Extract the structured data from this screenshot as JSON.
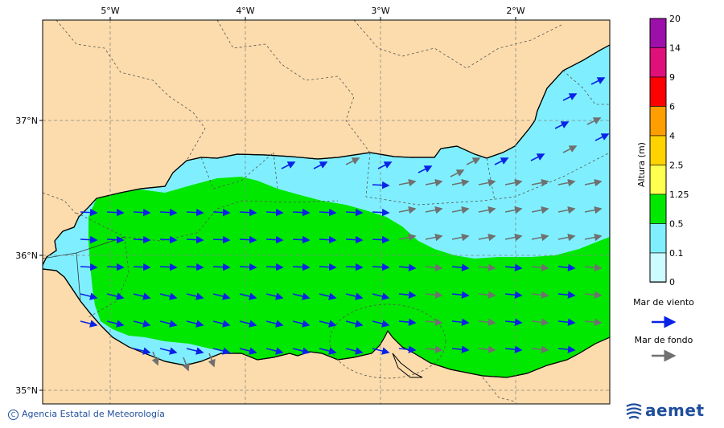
{
  "map": {
    "lon_labels": [
      "5°W",
      "4°W",
      "3°W",
      "2°W"
    ],
    "lat_labels": [
      "37°N",
      "36°N",
      "35°N"
    ]
  },
  "legend": {
    "title": "Altura (m)",
    "levels": [
      "20",
      "14",
      "9",
      "6",
      "4",
      "2.5",
      "1.25",
      "0.5",
      "0.1",
      "0"
    ],
    "colors": [
      "#9c0fa8",
      "#e0107b",
      "#ff0000",
      "#ff9e00",
      "#ffd300",
      "#ffff50",
      "#00e800",
      "#7fefff",
      "#ccfcff"
    ],
    "wind_label": "Mar de viento",
    "swell_label": "Mar de fondo",
    "wind_color": "#0a22e6",
    "swell_color": "#707070"
  },
  "colors": {
    "land": "#fcdcac",
    "sea_low": "#7fefff",
    "sea_mid": "#00e800"
  },
  "footer": {
    "credit": "Agencia Estatal de Meteorología",
    "logo": "aemet"
  }
}
